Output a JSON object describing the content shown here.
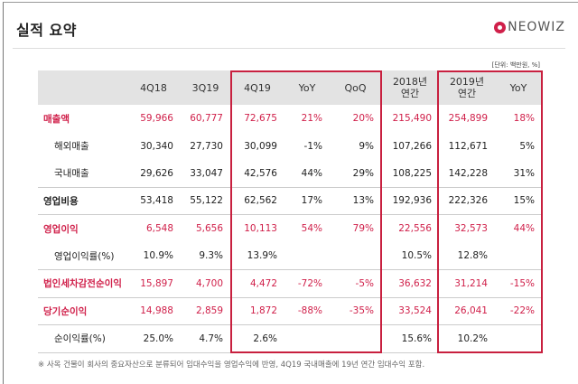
{
  "header": {
    "title": "실적 요약",
    "logo_text": "NEOWIZ"
  },
  "unit_note": "[단위: 백만원, %]",
  "colors": {
    "accent": "#d0204a",
    "header_bg": "#e3e3e3"
  },
  "table": {
    "columns": [
      "",
      "4Q18",
      "3Q19",
      "4Q19",
      "YoY",
      "QoQ",
      "2018년\n연간",
      "2019년\n연간",
      "YoY"
    ],
    "rows": [
      {
        "label": "매출액",
        "highlight": true,
        "values": [
          "59,966",
          "60,777",
          "72,675",
          "21%",
          "20%",
          "215,490",
          "254,899",
          "18%"
        ]
      },
      {
        "label": "해외매출",
        "highlight": false,
        "values": [
          "30,340",
          "27,730",
          "30,099",
          "-1%",
          "9%",
          "107,266",
          "112,671",
          "5%"
        ]
      },
      {
        "label": "국내매출",
        "highlight": false,
        "values": [
          "29,626",
          "33,047",
          "42,576",
          "44%",
          "29%",
          "108,225",
          "142,228",
          "31%"
        ]
      },
      {
        "label": "영업비용",
        "highlight": false,
        "values": [
          "53,418",
          "55,122",
          "62,562",
          "17%",
          "13%",
          "192,936",
          "222,326",
          "15%"
        ]
      },
      {
        "label": "영업이익",
        "highlight": true,
        "values": [
          "6,548",
          "5,656",
          "10,113",
          "54%",
          "79%",
          "22,556",
          "32,573",
          "44%"
        ]
      },
      {
        "label": "영업이익률(%)",
        "highlight": false,
        "values": [
          "10.9%",
          "9.3%",
          "13.9%",
          "",
          "",
          "10.5%",
          "12.8%",
          ""
        ]
      },
      {
        "label": "법인세차감전순이익",
        "highlight": true,
        "values": [
          "15,897",
          "4,700",
          "4,472",
          "-72%",
          "-5%",
          "36,632",
          "31,214",
          "-15%"
        ]
      },
      {
        "label": "당기순이익",
        "highlight": true,
        "values": [
          "14,988",
          "2,859",
          "1,872",
          "-88%",
          "-35%",
          "33,524",
          "26,041",
          "-22%"
        ]
      },
      {
        "label": "순이익률(%)",
        "highlight": false,
        "values": [
          "25.0%",
          "4.7%",
          "2.6%",
          "",
          "",
          "15.6%",
          "10.2%",
          ""
        ]
      }
    ]
  },
  "footnote": "※ 사옥 건물이 회사의 중요자산으로 분류되어 임대수익을 영업수익에 반영, 4Q19 국내매출에 19년 연간 임대수익 포함."
}
